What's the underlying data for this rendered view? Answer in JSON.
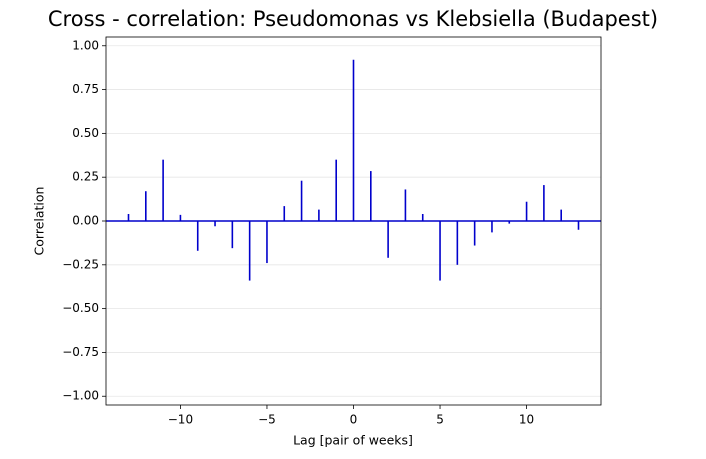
{
  "chart_data": {
    "type": "stem",
    "title": "Cross - correlation: Pseudomonas vs Klebsiella (Budapest)",
    "x_label": "Lag [pair of weeks]",
    "y_label": "Correlation",
    "x": [
      -13,
      -12,
      -11,
      -10,
      -9,
      -8,
      -7,
      -6,
      -5,
      -4,
      -3,
      -2,
      -1,
      0,
      1,
      2,
      3,
      4,
      5,
      6,
      7,
      8,
      9,
      10,
      11,
      12,
      13
    ],
    "values": [
      0.04,
      0.17,
      0.35,
      0.035,
      -0.17,
      -0.03,
      -0.155,
      -0.34,
      -0.24,
      0.085,
      0.23,
      0.065,
      0.35,
      0.92,
      0.285,
      -0.21,
      0.18,
      0.04,
      -0.34,
      -0.25,
      -0.14,
      -0.065,
      -0.015,
      0.11,
      0.205,
      0.065,
      -0.05
    ],
    "color": "#0000cc",
    "xlim": [
      -14.3,
      14.3
    ],
    "xticks": [
      {
        "value": -10,
        "label": "−10"
      },
      {
        "value": -5,
        "label": "−5"
      },
      0,
      5,
      10
    ],
    "ylim": [
      -1.05,
      1.05
    ],
    "yticks": [
      {
        "value": -1,
        "label": "−1.00"
      },
      {
        "value": -0.75,
        "label": "−0.75"
      },
      {
        "value": -0.5,
        "label": "−0.50"
      },
      {
        "value": -0.25,
        "label": "−0.25"
      },
      {
        "value": 0,
        "label": "0.00"
      },
      {
        "value": 0.25,
        "label": "0.25"
      },
      {
        "value": 0.5,
        "label": "0.50"
      },
      {
        "value": 0.75,
        "label": "0.75"
      },
      {
        "value": 1,
        "label": "1.00"
      }
    ],
    "grid": true
  }
}
